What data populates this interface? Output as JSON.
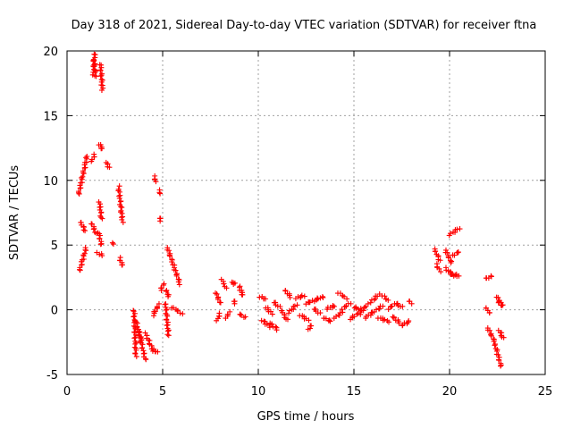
{
  "chart_data": {
    "type": "scatter",
    "title": "Day 318 of 2021, Sidereal Day-to-day VTEC variation (SDTVAR) for receiver ftna",
    "xlabel": "GPS time / hours",
    "ylabel": "SDTVAR / TECUs",
    "xlim": [
      0,
      25
    ],
    "ylim": [
      -5,
      20
    ],
    "xticks": [
      0,
      5,
      10,
      15,
      20,
      25
    ],
    "yticks": [
      -5,
      0,
      5,
      10,
      15,
      20
    ],
    "grid": true,
    "marker": "plus",
    "marker_color": "#ff0000",
    "series": [
      {
        "name": "SDTVAR",
        "segments": [
          {
            "x0": 1.38,
            "y0": 18.2,
            "x1": 1.45,
            "y1": 19.8
          },
          {
            "x0": 1.4,
            "y0": 19.3,
            "x1": 1.5,
            "y1": 18.0
          },
          {
            "x0": 1.75,
            "y0": 19.0,
            "x1": 1.85,
            "y1": 17.0
          },
          {
            "x0": 0.6,
            "y0": 8.9,
            "x1": 1.05,
            "y1": 11.9
          },
          {
            "x0": 0.65,
            "y0": 3.0,
            "x1": 1.0,
            "y1": 4.8
          },
          {
            "x0": 0.7,
            "y0": 6.8,
            "x1": 0.95,
            "y1": 6.1
          },
          {
            "x0": 1.3,
            "y0": 11.5,
            "x1": 1.45,
            "y1": 12.0
          },
          {
            "x0": 1.3,
            "y0": 6.7,
            "x1": 1.5,
            "y1": 5.9
          },
          {
            "x0": 1.6,
            "y0": 4.4,
            "x1": 1.85,
            "y1": 4.2
          },
          {
            "x0": 1.7,
            "y0": 12.8,
            "x1": 1.85,
            "y1": 12.4
          },
          {
            "x0": 1.7,
            "y0": 8.3,
            "x1": 1.8,
            "y1": 7.0
          },
          {
            "x0": 1.65,
            "y0": 6.0,
            "x1": 1.8,
            "y1": 5.0
          },
          {
            "x0": 2.05,
            "y0": 11.4,
            "x1": 2.2,
            "y1": 11.0
          },
          {
            "x0": 2.35,
            "y0": 5.2,
            "x1": 2.4,
            "y1": 5.1
          },
          {
            "x0": 2.7,
            "y0": 9.5,
            "x1": 2.9,
            "y1": 6.8
          },
          {
            "x0": 2.75,
            "y0": 4.0,
            "x1": 2.9,
            "y1": 3.4
          },
          {
            "x0": 3.5,
            "y0": 0.0,
            "x1": 3.6,
            "y1": -3.6
          },
          {
            "x0": 3.6,
            "y0": -0.8,
            "x1": 4.1,
            "y1": -3.9
          },
          {
            "x0": 3.7,
            "y0": -1.5,
            "x1": 3.9,
            "y1": -2.4
          },
          {
            "x0": 4.1,
            "y0": -1.8,
            "x1": 4.5,
            "y1": -3.2
          },
          {
            "x0": 4.5,
            "y0": -3.1,
            "x1": 4.75,
            "y1": -3.3
          },
          {
            "x0": 4.5,
            "y0": -0.4,
            "x1": 4.8,
            "y1": 0.4
          },
          {
            "x0": 4.55,
            "y0": 10.3,
            "x1": 4.65,
            "y1": 9.9
          },
          {
            "x0": 4.8,
            "y0": 9.2,
            "x1": 4.9,
            "y1": 9.0
          },
          {
            "x0": 4.85,
            "y0": 7.1,
            "x1": 4.9,
            "y1": 6.9
          },
          {
            "x0": 4.9,
            "y0": 1.5,
            "x1": 5.05,
            "y1": 2.0
          },
          {
            "x0": 5.15,
            "y0": 0.5,
            "x1": 5.3,
            "y1": -2.0
          },
          {
            "x0": 5.2,
            "y0": 1.5,
            "x1": 5.3,
            "y1": 1.0
          },
          {
            "x0": 5.25,
            "y0": 4.8,
            "x1": 5.9,
            "y1": 2.0
          },
          {
            "x0": 5.5,
            "y0": 0.2,
            "x1": 6.0,
            "y1": -0.3
          },
          {
            "x0": 7.8,
            "y0": 1.3,
            "x1": 8.0,
            "y1": 0.5
          },
          {
            "x0": 7.85,
            "y0": -0.8,
            "x1": 8.0,
            "y1": -0.3
          },
          {
            "x0": 8.1,
            "y0": 2.3,
            "x1": 8.3,
            "y1": 1.7
          },
          {
            "x0": 8.3,
            "y0": -0.6,
            "x1": 8.5,
            "y1": -0.2
          },
          {
            "x0": 8.6,
            "y0": 2.1,
            "x1": 8.8,
            "y1": 2.0
          },
          {
            "x0": 8.7,
            "y0": 0.7,
            "x1": 8.8,
            "y1": 0.5
          },
          {
            "x0": 9.0,
            "y0": 1.8,
            "x1": 9.2,
            "y1": 1.1
          },
          {
            "x0": 9.0,
            "y0": -0.3,
            "x1": 9.3,
            "y1": -0.6
          },
          {
            "x0": 10.1,
            "y0": 1.0,
            "x1": 10.4,
            "y1": 0.8
          },
          {
            "x0": 10.2,
            "y0": -0.8,
            "x1": 10.6,
            "y1": -1.3
          },
          {
            "x0": 10.4,
            "y0": 0.2,
            "x1": 10.7,
            "y1": -0.3
          },
          {
            "x0": 10.6,
            "y0": -1.0,
            "x1": 11.0,
            "y1": -1.5
          },
          {
            "x0": 10.8,
            "y0": 0.6,
            "x1": 11.1,
            "y1": 0.2
          },
          {
            "x0": 11.2,
            "y0": 0.0,
            "x1": 11.5,
            "y1": -0.8
          },
          {
            "x0": 11.4,
            "y0": 1.5,
            "x1": 11.7,
            "y1": 1.0
          },
          {
            "x0": 11.6,
            "y0": -0.2,
            "x1": 12.0,
            "y1": 0.4
          },
          {
            "x0": 12.0,
            "y0": 0.9,
            "x1": 12.4,
            "y1": 1.1
          },
          {
            "x0": 12.2,
            "y0": -0.4,
            "x1": 12.6,
            "y1": -0.8
          },
          {
            "x0": 12.5,
            "y0": 0.5,
            "x1": 12.9,
            "y1": 0.7
          },
          {
            "x0": 12.6,
            "y0": -1.5,
            "x1": 12.8,
            "y1": -1.2
          },
          {
            "x0": 12.9,
            "y0": 0.1,
            "x1": 13.2,
            "y1": -0.3
          },
          {
            "x0": 13.0,
            "y0": 0.8,
            "x1": 13.4,
            "y1": 1.0
          },
          {
            "x0": 13.4,
            "y0": -0.6,
            "x1": 13.8,
            "y1": -0.9
          },
          {
            "x0": 13.6,
            "y0": 0.1,
            "x1": 14.0,
            "y1": 0.3
          },
          {
            "x0": 14.0,
            "y0": -0.6,
            "x1": 14.4,
            "y1": -0.2
          },
          {
            "x0": 14.2,
            "y0": 1.3,
            "x1": 14.6,
            "y1": 0.9
          },
          {
            "x0": 14.4,
            "y0": 0.1,
            "x1": 14.8,
            "y1": 0.5
          },
          {
            "x0": 14.8,
            "y0": -0.7,
            "x1": 15.2,
            "y1": -0.3
          },
          {
            "x0": 15.0,
            "y0": 0.2,
            "x1": 15.4,
            "y1": 0.0
          },
          {
            "x0": 15.3,
            "y0": -0.3,
            "x1": 15.7,
            "y1": 0.4
          },
          {
            "x0": 15.6,
            "y0": -0.6,
            "x1": 16.0,
            "y1": -0.2
          },
          {
            "x0": 15.9,
            "y0": 0.6,
            "x1": 16.3,
            "y1": 1.2
          },
          {
            "x0": 16.1,
            "y0": -0.1,
            "x1": 16.5,
            "y1": 0.3
          },
          {
            "x0": 16.3,
            "y0": -0.6,
            "x1": 16.8,
            "y1": -0.9
          },
          {
            "x0": 16.5,
            "y0": 1.1,
            "x1": 16.8,
            "y1": 0.7
          },
          {
            "x0": 16.8,
            "y0": 0.1,
            "x1": 17.1,
            "y1": 0.4
          },
          {
            "x0": 17.0,
            "y0": -0.5,
            "x1": 17.4,
            "y1": -1.0
          },
          {
            "x0": 17.2,
            "y0": 0.5,
            "x1": 17.5,
            "y1": 0.2
          },
          {
            "x0": 17.5,
            "y0": -1.2,
            "x1": 17.9,
            "y1": -0.9
          },
          {
            "x0": 17.9,
            "y0": 0.7,
            "x1": 18.0,
            "y1": 0.5
          },
          {
            "x0": 19.2,
            "y0": 4.7,
            "x1": 19.5,
            "y1": 3.8
          },
          {
            "x0": 19.3,
            "y0": 3.5,
            "x1": 19.5,
            "y1": 3.0
          },
          {
            "x0": 19.8,
            "y0": 4.6,
            "x1": 20.1,
            "y1": 3.6
          },
          {
            "x0": 19.8,
            "y0": 3.2,
            "x1": 20.2,
            "y1": 2.6
          },
          {
            "x0": 20.0,
            "y0": 5.8,
            "x1": 20.5,
            "y1": 6.3
          },
          {
            "x0": 20.2,
            "y0": 4.2,
            "x1": 20.5,
            "y1": 4.5
          },
          {
            "x0": 20.1,
            "y0": 2.8,
            "x1": 20.5,
            "y1": 2.6
          },
          {
            "x0": 21.9,
            "y0": 2.4,
            "x1": 22.2,
            "y1": 2.6
          },
          {
            "x0": 21.9,
            "y0": 0.2,
            "x1": 22.1,
            "y1": -0.3
          },
          {
            "x0": 22.0,
            "y0": -1.4,
            "x1": 22.4,
            "y1": -2.6
          },
          {
            "x0": 22.4,
            "y0": -2.8,
            "x1": 22.7,
            "y1": -4.4
          },
          {
            "x0": 22.6,
            "y0": -1.6,
            "x1": 22.8,
            "y1": -2.2
          },
          {
            "x0": 22.5,
            "y0": 1.0,
            "x1": 22.7,
            "y1": 0.3
          },
          {
            "x0": 22.6,
            "y0": 0.6,
            "x1": 22.75,
            "y1": 0.4
          }
        ]
      }
    ]
  }
}
